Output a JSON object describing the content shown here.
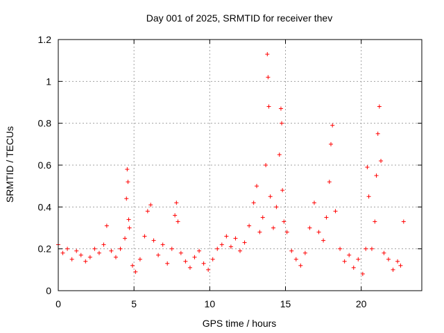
{
  "chart_data": {
    "type": "scatter",
    "title": "Day 001 of 2025, SRMTID for receiver thev",
    "xlabel": "GPS time / hours",
    "ylabel": "SRMTID / TECUs",
    "xlim": [
      0,
      24
    ],
    "ylim": [
      0,
      1.2
    ],
    "x_ticks": [
      0,
      5,
      10,
      15,
      20
    ],
    "x_tick_labels": [
      "0",
      "5",
      "10",
      "15",
      "20"
    ],
    "y_ticks": [
      0,
      0.2,
      0.4,
      0.6,
      0.8,
      1,
      1.2
    ],
    "y_tick_labels": [
      "0",
      "0.2",
      "0.4",
      "0.6",
      "0.8",
      "1",
      "1.2"
    ],
    "grid": true,
    "marker": "+",
    "marker_color": "#ff0000",
    "series": [
      {
        "name": "SRMTID",
        "color": "#ff0000",
        "x": [
          0.0,
          0.3,
          0.6,
          0.9,
          1.2,
          1.5,
          1.8,
          2.1,
          2.4,
          2.7,
          3.0,
          3.2,
          3.5,
          3.8,
          4.1,
          4.4,
          4.5,
          4.55,
          4.6,
          4.65,
          4.7,
          4.9,
          5.1,
          5.4,
          5.7,
          5.9,
          6.1,
          6.3,
          6.6,
          6.9,
          7.2,
          7.5,
          7.7,
          7.8,
          7.9,
          8.1,
          8.4,
          8.7,
          9.0,
          9.3,
          9.6,
          9.9,
          10.2,
          10.5,
          10.8,
          11.1,
          11.4,
          11.7,
          12.0,
          12.3,
          12.6,
          12.9,
          13.1,
          13.3,
          13.5,
          13.7,
          13.8,
          13.85,
          13.9,
          14.0,
          14.2,
          14.4,
          14.6,
          14.7,
          14.75,
          14.8,
          14.9,
          15.1,
          15.4,
          15.7,
          16.0,
          16.3,
          16.6,
          16.9,
          17.2,
          17.5,
          17.7,
          17.9,
          18.0,
          18.1,
          18.3,
          18.6,
          18.9,
          19.2,
          19.5,
          19.8,
          20.1,
          20.3,
          20.4,
          20.5,
          20.7,
          20.9,
          21.0,
          21.1,
          21.2,
          21.3,
          21.5,
          21.8,
          22.1,
          22.4,
          22.6,
          22.8
        ],
        "y": [
          0.22,
          0.18,
          0.2,
          0.15,
          0.19,
          0.17,
          0.14,
          0.16,
          0.2,
          0.18,
          0.22,
          0.31,
          0.19,
          0.16,
          0.2,
          0.25,
          0.44,
          0.58,
          0.52,
          0.34,
          0.3,
          0.12,
          0.09,
          0.15,
          0.26,
          0.38,
          0.41,
          0.24,
          0.17,
          0.22,
          0.13,
          0.2,
          0.36,
          0.42,
          0.33,
          0.18,
          0.14,
          0.11,
          0.16,
          0.19,
          0.13,
          0.1,
          0.15,
          0.2,
          0.22,
          0.26,
          0.21,
          0.25,
          0.19,
          0.23,
          0.31,
          0.42,
          0.5,
          0.28,
          0.35,
          0.6,
          1.13,
          1.02,
          0.88,
          0.45,
          0.3,
          0.4,
          0.65,
          0.87,
          0.8,
          0.48,
          0.33,
          0.28,
          0.19,
          0.15,
          0.12,
          0.18,
          0.3,
          0.42,
          0.28,
          0.24,
          0.35,
          0.52,
          0.7,
          0.79,
          0.38,
          0.2,
          0.14,
          0.17,
          0.11,
          0.15,
          0.08,
          0.2,
          0.59,
          0.45,
          0.2,
          0.33,
          0.55,
          0.75,
          0.88,
          0.62,
          0.18,
          0.15,
          0.1,
          0.14,
          0.12,
          0.33
        ]
      }
    ]
  }
}
